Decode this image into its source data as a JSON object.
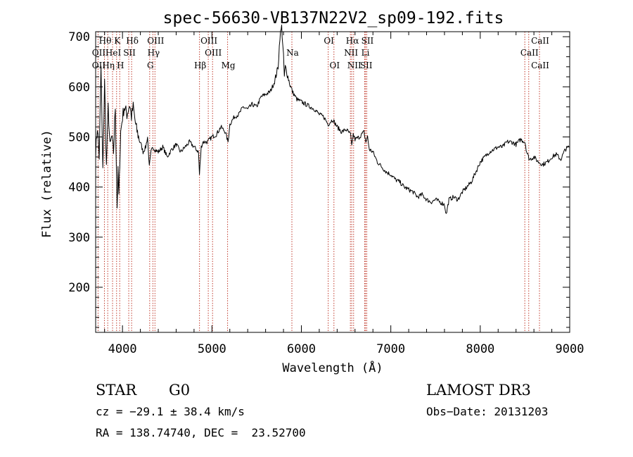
{
  "chart_data": {
    "type": "line",
    "title": "spec-56630-VB137N22V2_sp09-192.fits",
    "xlabel": "Wavelength (Å)",
    "ylabel": "Flux (relative)",
    "xlim": [
      3700,
      9000
    ],
    "ylim": [
      110,
      710
    ],
    "x_ticks": [
      4000,
      5000,
      6000,
      7000,
      8000,
      9000
    ],
    "y_ticks": [
      200,
      300,
      400,
      500,
      600,
      700
    ],
    "grid": false,
    "series": [
      {
        "name": "spectrum",
        "x": [
          3700,
          3720,
          3740,
          3760,
          3780,
          3800,
          3820,
          3840,
          3860,
          3880,
          3900,
          3920,
          3940,
          3950,
          3960,
          3970,
          3980,
          4000,
          4020,
          4050,
          4080,
          4100,
          4120,
          4150,
          4180,
          4200,
          4230,
          4260,
          4280,
          4300,
          4320,
          4340,
          4360,
          4400,
          4450,
          4500,
          4550,
          4600,
          4650,
          4700,
          4750,
          4800,
          4850,
          4861,
          4880,
          4900,
          4950,
          5000,
          5050,
          5100,
          5150,
          5180,
          5200,
          5250,
          5300,
          5350,
          5400,
          5450,
          5500,
          5550,
          5600,
          5650,
          5700,
          5740,
          5760,
          5780,
          5790,
          5800,
          5810,
          5820,
          5850,
          5880,
          5900,
          5950,
          6000,
          6050,
          6100,
          6150,
          6200,
          6250,
          6300,
          6350,
          6400,
          6450,
          6500,
          6550,
          6563,
          6580,
          6600,
          6650,
          6700,
          6720,
          6740,
          6760,
          6800,
          6850,
          6900,
          6950,
          7000,
          7050,
          7100,
          7150,
          7200,
          7250,
          7300,
          7350,
          7400,
          7450,
          7500,
          7550,
          7600,
          7620,
          7650,
          7700,
          7750,
          7800,
          7850,
          7900,
          7950,
          8000,
          8050,
          8100,
          8150,
          8200,
          8250,
          8300,
          8350,
          8400,
          8450,
          8500,
          8520,
          8550,
          8600,
          8650,
          8700,
          8750,
          8800,
          8850,
          8900,
          8950,
          8990
        ],
        "y": [
          470,
          520,
          460,
          640,
          430,
          610,
          440,
          560,
          480,
          500,
          470,
          560,
          360,
          430,
          380,
          450,
          510,
          540,
          560,
          545,
          565,
          540,
          560,
          520,
          500,
          490,
          470,
          480,
          500,
          440,
          470,
          480,
          475,
          470,
          480,
          460,
          475,
          485,
          470,
          480,
          490,
          480,
          470,
          425,
          480,
          490,
          490,
          500,
          505,
          520,
          510,
          490,
          525,
          540,
          545,
          560,
          555,
          565,
          560,
          580,
          585,
          590,
          610,
          640,
          700,
          720,
          690,
          660,
          620,
          640,
          620,
          600,
          590,
          575,
          570,
          565,
          560,
          555,
          545,
          540,
          525,
          535,
          520,
          510,
          515,
          505,
          480,
          505,
          495,
          500,
          510,
          490,
          500,
          475,
          470,
          450,
          440,
          430,
          425,
          415,
          410,
          400,
          395,
          390,
          380,
          385,
          375,
          370,
          375,
          370,
          365,
          345,
          375,
          380,
          375,
          390,
          400,
          410,
          430,
          450,
          460,
          470,
          475,
          480,
          480,
          490,
          490,
          485,
          495,
          490,
          470,
          455,
          460,
          450,
          445,
          450,
          460,
          465,
          455,
          475,
          480
        ]
      }
    ],
    "lines": [
      {
        "name": "OII",
        "x": 3727
      },
      {
        "name": "Hθ",
        "x": 3798
      },
      {
        "name": "Hη",
        "x": 3835
      },
      {
        "name": "HeI",
        "x": 3889
      },
      {
        "name": "K",
        "x": 3934
      },
      {
        "name": "H",
        "x": 3969
      },
      {
        "name": "SII",
        "x": 4070
      },
      {
        "name": "Hδ",
        "x": 4102
      },
      {
        "name": "G",
        "x": 4304
      },
      {
        "name": "Hγ",
        "x": 4340
      },
      {
        "name": "OIII",
        "x": 4363
      },
      {
        "name": "Hβ",
        "x": 4861
      },
      {
        "name": "OIII",
        "x": 4959
      },
      {
        "name": "OIII",
        "x": 5007
      },
      {
        "name": "Mg",
        "x": 5175
      },
      {
        "name": "Na",
        "x": 5894
      },
      {
        "name": "OI",
        "x": 6300
      },
      {
        "name": "OI",
        "x": 6364
      },
      {
        "name": "NII",
        "x": 6548
      },
      {
        "name": "Hα",
        "x": 6563
      },
      {
        "name": "NII",
        "x": 6584
      },
      {
        "name": "Li",
        "x": 6708
      },
      {
        "name": "SII",
        "x": 6717
      },
      {
        "name": "SII",
        "x": 6731
      },
      {
        "name": "CaII",
        "x": 8498
      },
      {
        "name": "CaII",
        "x": 8542
      },
      {
        "name": "CaII",
        "x": 8662
      }
    ],
    "line_label_rows": [
      [
        {
          "text": "Hθ",
          "line": 1
        },
        {
          "text": "K",
          "line": 4
        },
        {
          "text": "Hδ",
          "line": 7
        },
        {
          "text": "OIII",
          "line": 10
        },
        {
          "text": "OIII",
          "line": 12
        },
        {
          "text": "OI",
          "line": 16
        },
        {
          "text": "Hα",
          "line": 19
        },
        {
          "text": "SII",
          "line": 23
        },
        {
          "text": "CaII",
          "line": 26
        }
      ],
      [
        {
          "text": "OII",
          "line": 0
        },
        {
          "text": "HeI",
          "line": 3
        },
        {
          "text": "SII",
          "line": 6
        },
        {
          "text": "Hγ",
          "line": 9
        },
        {
          "text": "OIII",
          "line": 13
        },
        {
          "text": "Na",
          "line": 15
        },
        {
          "text": "NII",
          "line": 18
        },
        {
          "text": "Li",
          "line": 21
        },
        {
          "text": "CaII",
          "line": 25
        }
      ],
      [
        {
          "text": "OII",
          "line": 0
        },
        {
          "text": "Hη",
          "line": 2
        },
        {
          "text": "H",
          "line": 5
        },
        {
          "text": "G",
          "line": 8
        },
        {
          "text": "Hβ",
          "line": 11
        },
        {
          "text": "Mg",
          "line": 14
        },
        {
          "text": "OI",
          "line": 17
        },
        {
          "text": "NII",
          "line": 20
        },
        {
          "text": "SII",
          "line": 22
        },
        {
          "text": "CaII",
          "line": 26
        }
      ]
    ]
  },
  "info": {
    "class": "STAR",
    "subclass": "G0",
    "survey": "LAMOST DR3",
    "cz": "cz = −29.1 ± 38.4 km/s",
    "obs_date": "Obs−Date: 20131203",
    "coords": "RA = 138.74740, DEC =  23.52700"
  },
  "colors": {
    "axis": "#000000",
    "spectrum": "#000000",
    "line_marker": "#c0392b"
  }
}
